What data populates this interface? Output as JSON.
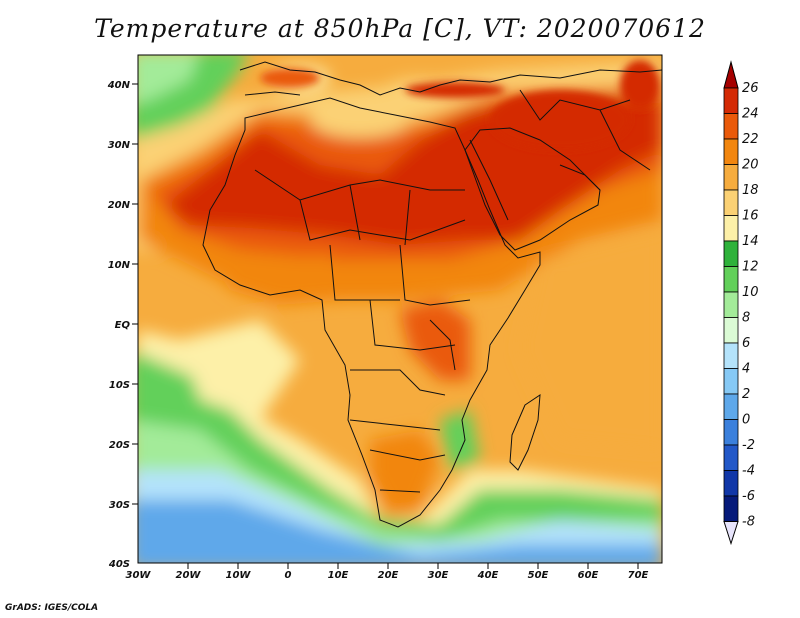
{
  "title": "Temperature at 850hPa [C], VT: 2020070612",
  "credit": "GrADS: IGES/COLA",
  "lat_labels": [
    "40N",
    "30N",
    "20N",
    "10N",
    "EQ",
    "10S",
    "20S",
    "30S",
    "40S"
  ],
  "lon_labels": [
    "30W",
    "20W",
    "10W",
    "0",
    "10E",
    "20E",
    "30E",
    "40E",
    "50E",
    "60E",
    "70E"
  ],
  "colorbar": {
    "labels": [
      "26",
      "24",
      "22",
      "20",
      "18",
      "16",
      "14",
      "12",
      "10",
      "8",
      "6",
      "4",
      "2",
      "0",
      "-2",
      "-4",
      "-6",
      "-8"
    ],
    "colors": [
      "#a50000",
      "#d42a05",
      "#ea5a0a",
      "#f2860f",
      "#f6ac3e",
      "#fbd174",
      "#fdf0a8",
      "#2fb23b",
      "#62d05a",
      "#a3eb99",
      "#dbfbd5",
      "#b4e3fb",
      "#86c9f5",
      "#5ea8ea",
      "#3b80dc",
      "#2258c8",
      "#1137a8",
      "#061a7a",
      "#e7e4fb"
    ]
  }
}
